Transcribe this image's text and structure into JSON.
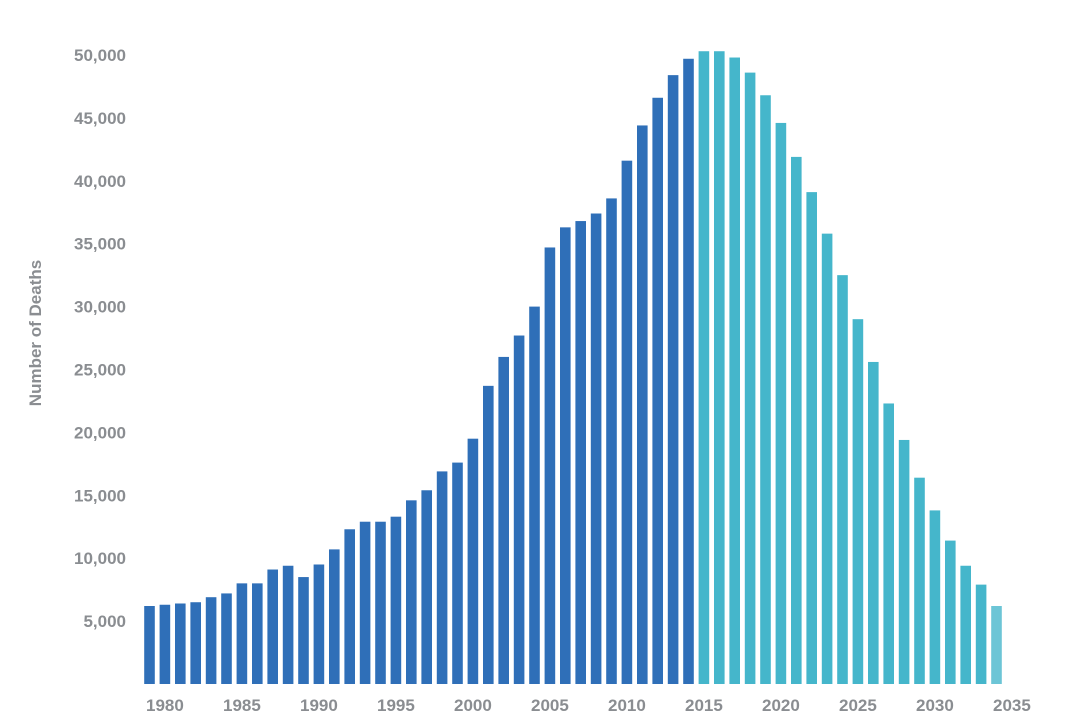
{
  "chart_data": {
    "type": "bar",
    "title": "",
    "xlabel": "",
    "ylabel": "Number of Deaths",
    "ylim": [
      0,
      50000
    ],
    "yticks": [
      5000,
      10000,
      15000,
      20000,
      25000,
      30000,
      35000,
      40000,
      45000,
      50000
    ],
    "ytick_labels": [
      "5,000",
      "10,000",
      "15,000",
      "20,000",
      "25,000",
      "30,000",
      "35,000",
      "40,000",
      "45,000",
      "50,000"
    ],
    "xticks": [
      1980,
      1985,
      1990,
      1995,
      2000,
      2005,
      2010,
      2015,
      2020,
      2025,
      2030,
      2035
    ],
    "xtick_labels": [
      "1980",
      "1985",
      "1990",
      "1995",
      "2000",
      "2005",
      "2010",
      "2015",
      "2020",
      "2025",
      "2030",
      "2035"
    ],
    "grid": false,
    "legend": "none",
    "categories": [
      1979,
      1980,
      1981,
      1982,
      1983,
      1984,
      1985,
      1986,
      1987,
      1988,
      1989,
      1990,
      1991,
      1992,
      1993,
      1994,
      1995,
      1996,
      1997,
      1998,
      1999,
      2000,
      2001,
      2002,
      2003,
      2004,
      2005,
      2006,
      2007,
      2008,
      2009,
      2010,
      2011,
      2012,
      2013,
      2014,
      2015,
      2016,
      2017,
      2018,
      2019,
      2020,
      2021,
      2022,
      2023,
      2024,
      2025,
      2026,
      2027,
      2028,
      2029,
      2030,
      2031,
      2032,
      2033,
      2034,
      2035,
      2036
    ],
    "series": [
      {
        "color": "#2f6fb8",
        "values": [
          6200,
          6300,
          6400,
          6500,
          6900,
          7200,
          8000,
          8000,
          9100,
          9400,
          8500,
          9500,
          10700,
          12300,
          12900,
          12900,
          13300,
          14600,
          15400,
          16900,
          17600,
          19500,
          23700,
          26000,
          27700,
          30000,
          34700,
          36300,
          36800,
          37400,
          38600,
          41600,
          44400,
          46600,
          48400,
          49700,
          null,
          null,
          null,
          null,
          null,
          null,
          null,
          null,
          null,
          null,
          null,
          null,
          null,
          null,
          null,
          null,
          null,
          null,
          null,
          null,
          null,
          null
        ]
      },
      {
        "color": "#45b6cb",
        "values": [
          null,
          null,
          null,
          null,
          null,
          null,
          null,
          null,
          null,
          null,
          null,
          null,
          null,
          null,
          null,
          null,
          null,
          null,
          null,
          null,
          null,
          null,
          null,
          null,
          null,
          null,
          null,
          null,
          null,
          null,
          null,
          null,
          null,
          null,
          null,
          null,
          50300,
          50300,
          49800,
          48600,
          46800,
          44600,
          41900,
          39100,
          35800,
          32500,
          29000,
          25600,
          22300,
          19400,
          16400,
          13800,
          11400,
          9400,
          7900,
          6200,
          null,
          null
        ]
      }
    ],
    "bar_color_last": "#6cc5d6"
  }
}
